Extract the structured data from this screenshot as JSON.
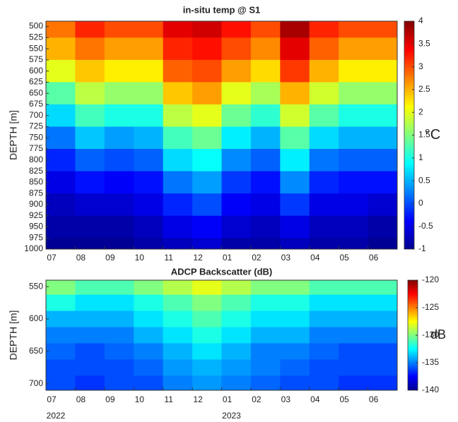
{
  "chart_data": [
    {
      "type": "heatmap",
      "title": "in-situ temp @ S1",
      "y_label": "DEPTH [m]",
      "colorbar_label": "°C",
      "categories": [
        "07",
        "08",
        "09",
        "10",
        "11",
        "12",
        "01",
        "02",
        "03",
        "04",
        "05",
        "06"
      ],
      "y": [
        500,
        550,
        600,
        650,
        700,
        750,
        800,
        850,
        900,
        950,
        1000
      ],
      "ylim": [
        488,
        1000
      ],
      "y_reversed": true,
      "yticks": [
        500,
        525,
        550,
        575,
        600,
        625,
        650,
        675,
        700,
        725,
        750,
        775,
        800,
        825,
        850,
        875,
        900,
        925,
        950,
        975,
        1000
      ],
      "clim": [
        -1,
        4
      ],
      "cticks": [
        -1,
        -0.5,
        0,
        0.5,
        1,
        1.5,
        2,
        2.5,
        3,
        3.5,
        4
      ],
      "colormap": "jet",
      "z": [
        [
          2.8,
          3.2,
          3.0,
          3.0,
          3.5,
          3.6,
          3.3,
          3.0,
          3.8,
          3.2,
          3.0,
          3.0
        ],
        [
          2.5,
          2.8,
          2.6,
          2.6,
          3.2,
          3.3,
          3.0,
          2.7,
          3.5,
          2.9,
          2.6,
          2.6
        ],
        [
          2.0,
          2.4,
          2.2,
          2.2,
          2.9,
          3.0,
          2.6,
          2.3,
          3.1,
          2.5,
          2.2,
          2.2
        ],
        [
          1.3,
          1.8,
          1.6,
          1.6,
          2.4,
          2.6,
          2.0,
          1.7,
          2.5,
          1.9,
          1.6,
          1.6
        ],
        [
          0.7,
          1.2,
          1.0,
          1.0,
          1.8,
          2.0,
          1.4,
          1.1,
          1.9,
          1.3,
          1.0,
          1.0
        ],
        [
          0.2,
          0.6,
          0.4,
          0.5,
          1.2,
          1.4,
          0.8,
          0.5,
          1.3,
          0.7,
          0.5,
          0.5
        ],
        [
          -0.2,
          0.1,
          0,
          0.1,
          0.7,
          0.9,
          0.3,
          0.1,
          0.8,
          0.2,
          0.1,
          0.1
        ],
        [
          -0.5,
          -0.3,
          -0.4,
          -0.3,
          0.2,
          0.4,
          -0.1,
          -0.3,
          0.3,
          -0.2,
          -0.3,
          -0.3
        ],
        [
          -0.7,
          -0.6,
          -0.6,
          -0.5,
          -0.2,
          0,
          -0.4,
          -0.5,
          -0.1,
          -0.5,
          -0.5,
          -0.6
        ],
        [
          -0.8,
          -0.8,
          -0.8,
          -0.7,
          -0.5,
          -0.4,
          -0.6,
          -0.7,
          -0.5,
          -0.7,
          -0.7,
          -0.8
        ],
        [
          -0.9,
          -0.9,
          -0.9,
          -0.8,
          -0.7,
          -0.6,
          -0.8,
          -0.8,
          -0.7,
          -0.8,
          -0.8,
          -0.9
        ]
      ]
    },
    {
      "type": "heatmap",
      "title": "ADCP Backscatter (dB)",
      "y_label": "DEPTH [m]",
      "colorbar_label": "dB",
      "categories": [
        "07",
        "08",
        "09",
        "10",
        "11",
        "12",
        "01",
        "02",
        "03",
        "04",
        "05",
        "06"
      ],
      "year_labels": [
        "2022",
        null,
        null,
        null,
        null,
        null,
        "2023",
        null,
        null,
        null,
        null,
        null
      ],
      "y": [
        550,
        575,
        600,
        625,
        650,
        675,
        700
      ],
      "ylim": [
        540,
        710
      ],
      "y_reversed": true,
      "yticks": [
        550,
        600,
        650,
        700
      ],
      "clim": [
        -140,
        -120
      ],
      "cticks": [
        -140,
        -135,
        -130,
        -125,
        -120
      ],
      "colormap": "jet",
      "z": [
        [
          -130,
          -131,
          -131,
          -130,
          -129,
          -128,
          -129,
          -130,
          -130,
          -131,
          -131,
          -131
        ],
        [
          -132,
          -133,
          -133,
          -132,
          -131,
          -130,
          -131,
          -132,
          -132,
          -133,
          -133,
          -133
        ],
        [
          -134,
          -134,
          -134,
          -133,
          -132,
          -131,
          -132,
          -133,
          -133,
          -134,
          -134,
          -134
        ],
        [
          -135,
          -135,
          -135,
          -134,
          -133,
          -132,
          -133,
          -134,
          -134,
          -135,
          -135,
          -135
        ],
        [
          -135.5,
          -136,
          -135.5,
          -135,
          -134,
          -133,
          -134,
          -135,
          -135,
          -135.5,
          -136,
          -136
        ],
        [
          -136,
          -136,
          -136,
          -135.5,
          -134.5,
          -134,
          -134.5,
          -135,
          -135.5,
          -136,
          -136,
          -136
        ],
        [
          -136,
          -136.5,
          -136,
          -136,
          -135,
          -134.5,
          -135,
          -135.5,
          -136,
          -136,
          -136.5,
          -136.5
        ]
      ]
    }
  ]
}
